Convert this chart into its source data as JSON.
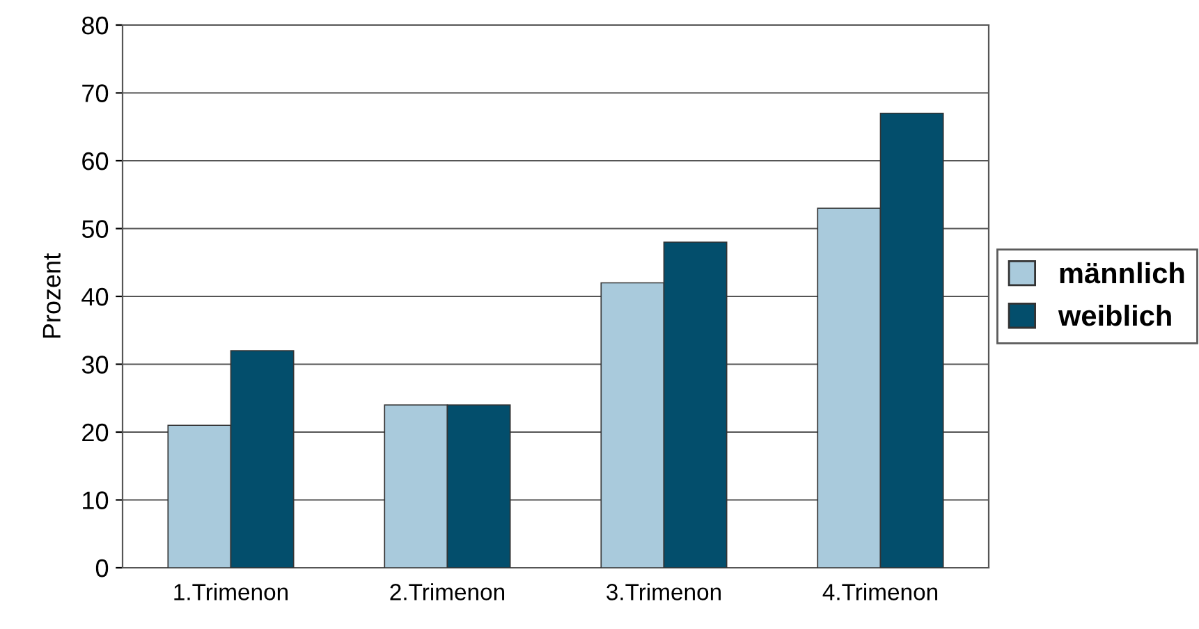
{
  "chart_data": {
    "type": "bar",
    "ylabel": "Prozent",
    "categories": [
      "1.Trimenon",
      "2.Trimenon",
      "3.Trimenon",
      "4.Trimenon"
    ],
    "series": [
      {
        "name": "männlich",
        "color": "#a9cadc",
        "values": [
          21,
          24,
          42,
          53
        ]
      },
      {
        "name": "weiblich",
        "color": "#034e6c",
        "values": [
          32,
          24,
          48,
          67
        ]
      }
    ],
    "ylim": [
      0,
      80
    ],
    "yticks": [
      0,
      10,
      20,
      30,
      40,
      50,
      60,
      70,
      80
    ],
    "grid": "y",
    "legend": "right"
  }
}
